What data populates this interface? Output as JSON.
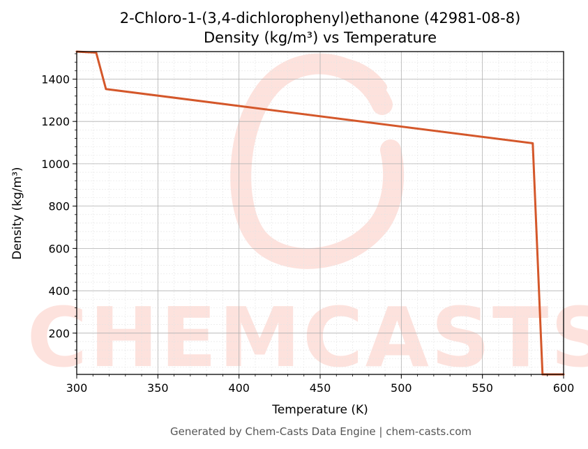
{
  "chart_data": {
    "type": "line",
    "title": "2-Chloro-1-(3,4-dichlorophenyl)ethanone (42981-08-8)",
    "subtitle": "Density (kg/m³) vs Temperature",
    "xlabel": "Temperature (K)",
    "ylabel": "Density (kg/m³)",
    "xlim": [
      300,
      600
    ],
    "ylim": [
      5,
      1530
    ],
    "x_ticks": [
      300,
      350,
      400,
      450,
      500,
      550,
      600
    ],
    "y_ticks": [
      200,
      400,
      600,
      800,
      1000,
      1200,
      1400
    ],
    "grid": true,
    "series": [
      {
        "color": "#d4572a",
        "x": [
          300,
          312,
          318,
          581,
          587,
          600
        ],
        "y": [
          1530,
          1525,
          1353,
          1097,
          5,
          5
        ]
      }
    ]
  },
  "watermark": {
    "text": "CHEMCASTS",
    "color": "#fde2dd"
  },
  "footer": {
    "text": "Generated by Chem-Casts Data Engine | chem-casts.com"
  }
}
